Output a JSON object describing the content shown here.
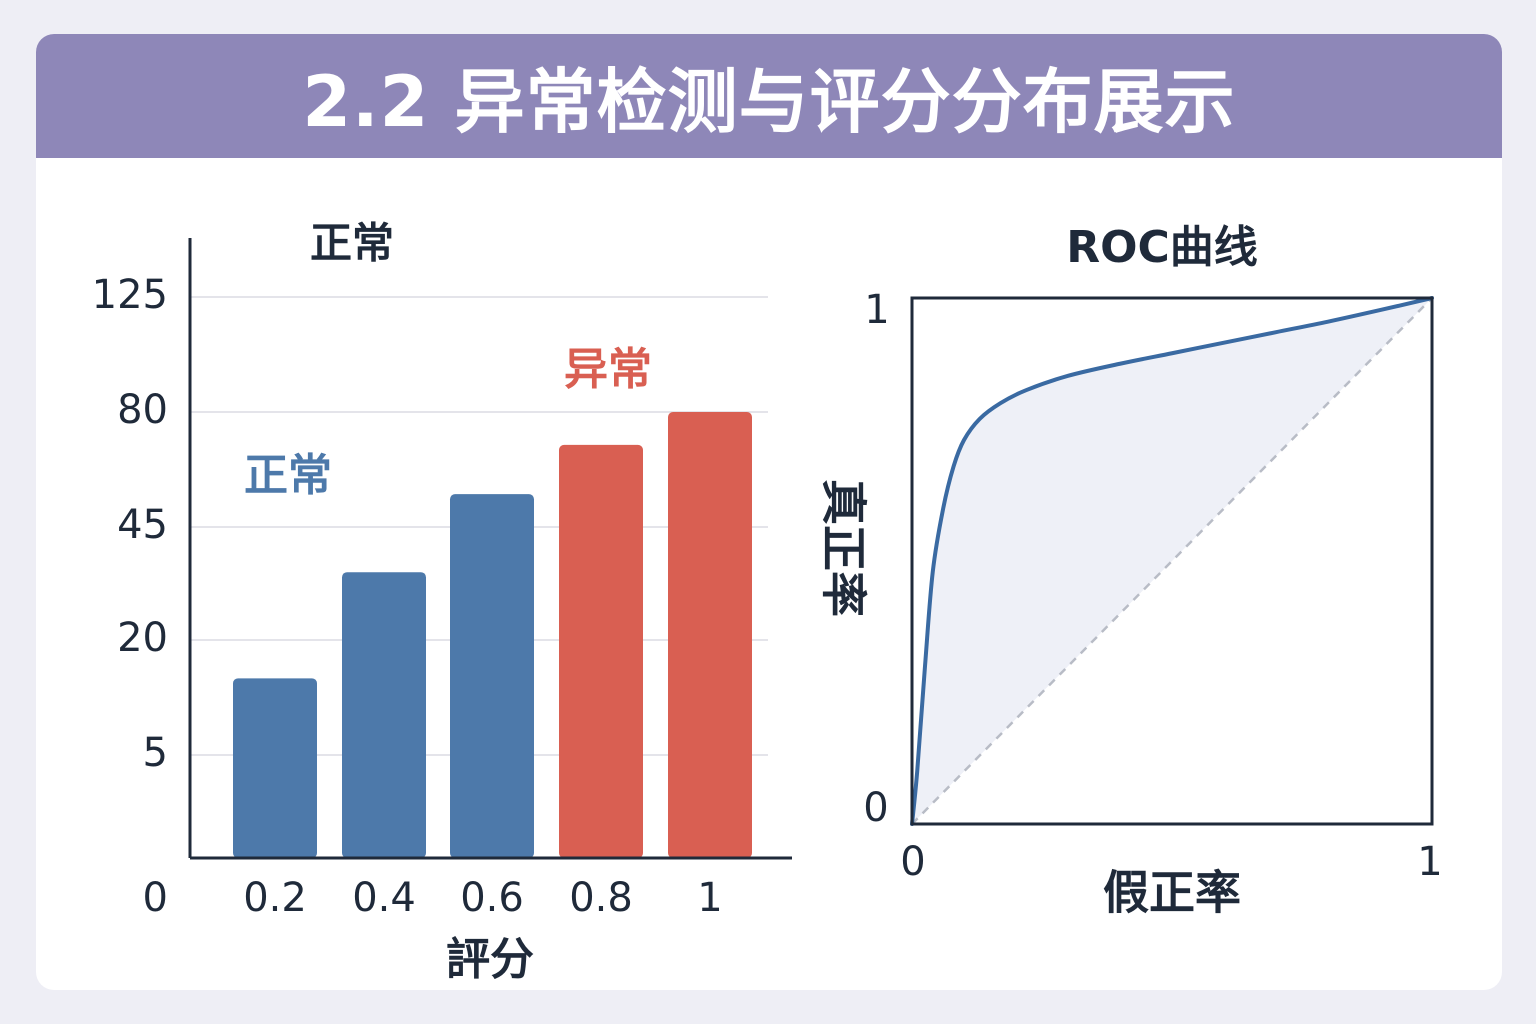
{
  "header": {
    "title": "2.2 异常检测与评分分布展示"
  },
  "colors": {
    "header_bg": "#8e87b8",
    "normal": "#4d79aa",
    "anomaly": "#d95f52",
    "axis": "#1f2a3a",
    "roc_line": "#3a6aa2",
    "roc_fill": "#eef0f7",
    "diagonal": "#b8bcc6",
    "grid": "#e4e4ea"
  },
  "chart_data": [
    {
      "type": "bar",
      "title": "正常",
      "xlabel": "評分",
      "ylabel": "",
      "categories": [
        "0.2",
        "0.4",
        "0.6",
        "0.8",
        "1"
      ],
      "values": [
        15,
        35,
        55,
        70,
        80
      ],
      "classes": [
        "normal",
        "normal",
        "normal",
        "anomaly",
        "anomaly"
      ],
      "y_ticks": [
        "0",
        "5",
        "20",
        "45",
        "80",
        "125"
      ],
      "annotations": [
        {
          "text": "正常",
          "class": "normal"
        },
        {
          "text": "异常",
          "class": "anomaly"
        }
      ],
      "grid": true
    },
    {
      "type": "line",
      "title": "ROC曲线",
      "xlabel": "假正率",
      "ylabel": "真正率",
      "x_ticks": [
        "0",
        "1"
      ],
      "y_ticks": [
        "0",
        "1"
      ],
      "xlim": [
        0,
        1
      ],
      "ylim": [
        0,
        1
      ],
      "series": [
        {
          "x": [
            0,
            0.01,
            0.025,
            0.04,
            0.06,
            0.08,
            0.1,
            0.13,
            0.17,
            0.22,
            0.3,
            0.4,
            0.5,
            0.6,
            0.7,
            0.8,
            0.9,
            1.0
          ],
          "y": [
            0,
            0.1,
            0.3,
            0.48,
            0.6,
            0.68,
            0.73,
            0.77,
            0.8,
            0.825,
            0.852,
            0.875,
            0.895,
            0.915,
            0.935,
            0.955,
            0.977,
            1.0
          ]
        },
        {
          "x": [
            0,
            1
          ],
          "y": [
            0,
            1
          ],
          "style": "dashed"
        }
      ]
    }
  ]
}
